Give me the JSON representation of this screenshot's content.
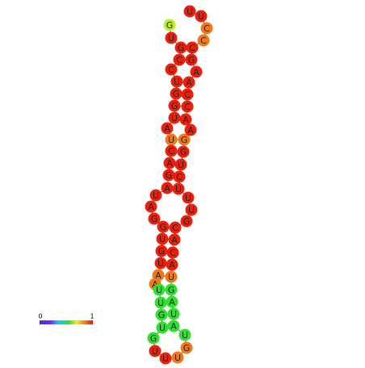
{
  "nodes": [
    {
      "label": "G",
      "color": "#b8f020"
    },
    {
      "label": "U",
      "color": "#e8200c"
    },
    {
      "label": "G",
      "color": "#e8200c"
    },
    {
      "label": "C",
      "color": "#e8200c"
    },
    {
      "label": "C",
      "color": "#e8200c"
    },
    {
      "label": "U",
      "color": "#e8200c"
    },
    {
      "label": "G",
      "color": "#e8200c"
    },
    {
      "label": "G",
      "color": "#e8200c"
    },
    {
      "label": "U",
      "color": "#e8200c"
    },
    {
      "label": "A",
      "color": "#e8200c"
    },
    {
      "label": "U",
      "color": "#f07818"
    },
    {
      "label": "C",
      "color": "#e8200c"
    },
    {
      "label": "A",
      "color": "#e8200c"
    },
    {
      "label": "G",
      "color": "#e8200c"
    },
    {
      "label": "A",
      "color": "#e8200c"
    },
    {
      "label": "U",
      "color": "#e8200c"
    },
    {
      "label": "A",
      "color": "#e8200c"
    },
    {
      "label": "G",
      "color": "#e8200c"
    },
    {
      "label": "G",
      "color": "#e8200c"
    },
    {
      "label": "U",
      "color": "#e8200c"
    },
    {
      "label": "G",
      "color": "#e8200c"
    },
    {
      "label": "U",
      "color": "#e8200c"
    },
    {
      "label": "A",
      "color": "#f07818"
    },
    {
      "label": "A",
      "color": "#f07818"
    },
    {
      "label": "U",
      "color": "#30e030"
    },
    {
      "label": "U",
      "color": "#30e030"
    },
    {
      "label": "G",
      "color": "#30e030"
    },
    {
      "label": "U",
      "color": "#30e030"
    },
    {
      "label": "G",
      "color": "#30e030"
    },
    {
      "label": "U",
      "color": "#e8200c"
    },
    {
      "label": "U",
      "color": "#e8200c"
    },
    {
      "label": "U",
      "color": "#f07818"
    },
    {
      "label": "G",
      "color": "#f07818"
    },
    {
      "label": "U",
      "color": "#30e030"
    },
    {
      "label": "A",
      "color": "#30e030"
    },
    {
      "label": "U",
      "color": "#30e030"
    },
    {
      "label": "A",
      "color": "#30e030"
    },
    {
      "label": "G",
      "color": "#30e030"
    },
    {
      "label": "U",
      "color": "#f07818"
    },
    {
      "label": "A",
      "color": "#e8200c"
    },
    {
      "label": "C",
      "color": "#e8200c"
    },
    {
      "label": "A",
      "color": "#e8200c"
    },
    {
      "label": "C",
      "color": "#e8200c"
    },
    {
      "label": "G",
      "color": "#e8200c"
    },
    {
      "label": "U",
      "color": "#e8200c"
    },
    {
      "label": "U",
      "color": "#e8200c"
    },
    {
      "label": "U",
      "color": "#e8200c"
    },
    {
      "label": "C",
      "color": "#e8200c"
    },
    {
      "label": "U",
      "color": "#e8200c"
    },
    {
      "label": "G",
      "color": "#e8200c"
    },
    {
      "label": "G",
      "color": "#f07818"
    },
    {
      "label": "A",
      "color": "#e8200c"
    },
    {
      "label": "A",
      "color": "#e8200c"
    },
    {
      "label": "C",
      "color": "#e8200c"
    },
    {
      "label": "C",
      "color": "#e8200c"
    },
    {
      "label": "A",
      "color": "#e8200c"
    },
    {
      "label": "A",
      "color": "#e8200c"
    },
    {
      "label": "G",
      "color": "#e8200c"
    },
    {
      "label": "C",
      "color": "#e8200c"
    },
    {
      "label": "C",
      "color": "#f07818"
    },
    {
      "label": "C",
      "color": "#f07818"
    },
    {
      "label": "U",
      "color": "#e8200c"
    },
    {
      "label": "U",
      "color": "#e8200c"
    }
  ],
  "legend": {
    "min": "0",
    "max": "1"
  }
}
